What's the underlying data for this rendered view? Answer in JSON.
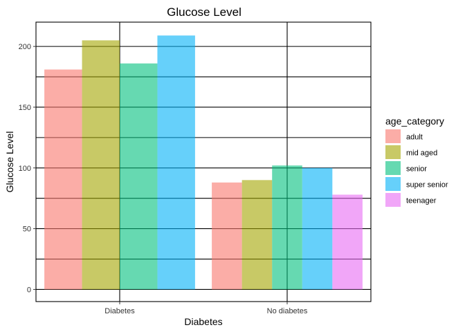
{
  "chart_data": {
    "type": "bar",
    "title": "Glucose Level",
    "xlabel": "Diabetes",
    "ylabel": "Glucose Level",
    "categories": [
      "Diabetes",
      "No diabetes"
    ],
    "ylim": [
      -10,
      220
    ],
    "yticks": [
      0,
      50,
      100,
      150,
      200
    ],
    "grid": true,
    "legend_title": "age_category",
    "legend_position": "right",
    "series": [
      {
        "name": "adult",
        "color": "#F8766D",
        "values": [
          181,
          88
        ]
      },
      {
        "name": "mid aged",
        "color": "#A3A500",
        "values": [
          205,
          90
        ]
      },
      {
        "name": "senior",
        "color": "#00BF7D",
        "values": [
          186,
          102
        ]
      },
      {
        "name": "super senior",
        "color": "#00B0F6",
        "values": [
          209,
          100
        ]
      },
      {
        "name": "teenager",
        "color": "#E76BF3",
        "values": [
          null,
          78
        ]
      }
    ]
  }
}
